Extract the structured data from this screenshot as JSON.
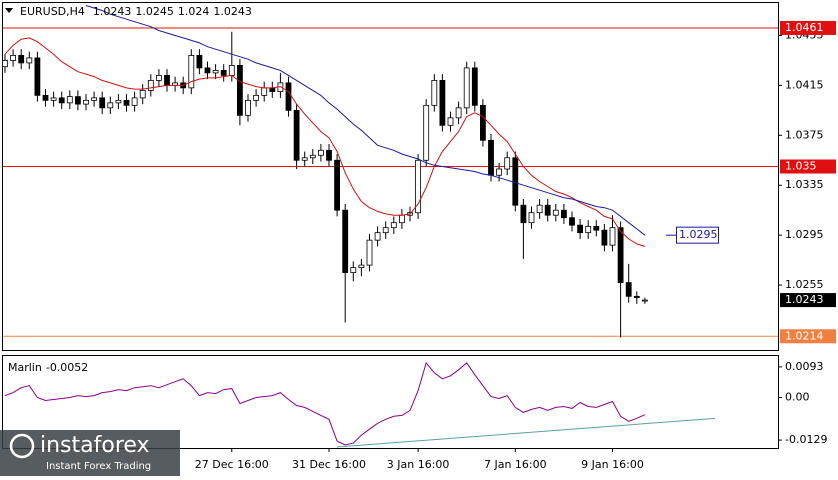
{
  "chart_data": [
    {
      "type": "candlestick",
      "categories": [
        null,
        null,
        null,
        null,
        null,
        null,
        null,
        null,
        null,
        null,
        null,
        null,
        null,
        null,
        null,
        null,
        null,
        null,
        null,
        null,
        null,
        null,
        null,
        null,
        null,
        null,
        null,
        null,
        "27 Dec 16:00",
        null,
        null,
        null,
        null,
        null,
        null,
        null,
        null,
        null,
        null,
        null,
        "31 Dec 16:00",
        null,
        null,
        null,
        null,
        null,
        null,
        null,
        null,
        null,
        null,
        "3 Jan 16:00",
        null,
        null,
        null,
        null,
        null,
        null,
        null,
        null,
        null,
        null,
        null,
        "7 Jan 16:00",
        null,
        null,
        null,
        null,
        null,
        null,
        null,
        null,
        null,
        null,
        null,
        "9 Jan 16:00",
        null,
        null,
        null,
        null
      ],
      "series": [
        {
          "name": "EURUSD,H4",
          "open": [
            1.043,
            1.0435,
            1.0439,
            1.0433,
            1.0437,
            1.0407,
            1.0403,
            1.0405,
            1.0401,
            1.0406,
            1.04,
            1.0403,
            1.0405,
            1.0397,
            1.0401,
            1.0403,
            1.0399,
            1.0405,
            1.0411,
            1.0419,
            1.0423,
            1.0415,
            1.0417,
            1.0413,
            1.0439,
            1.0429,
            1.0425,
            1.0427,
            1.0423,
            1.0431,
            1.0391,
            1.0403,
            1.0407,
            1.0413,
            1.041,
            1.0417,
            1.0395,
            1.0355,
            1.0357,
            1.0359,
            1.0363,
            1.0355,
            1.0315,
            1.0265,
            1.0269,
            1.0271,
            1.0291,
            1.0297,
            1.0301,
            1.0305,
            1.0311,
            1.0313,
            1.0355,
            1.0399,
            1.0419,
            1.0383,
            1.0389,
            1.0397,
            1.0429,
            1.0399,
            1.0371,
            1.0343,
            1.0348,
            1.0357,
            1.0319,
            1.0305,
            1.0313,
            1.0319,
            1.0311,
            1.0315,
            1.0309,
            1.0303,
            1.0297,
            1.0302,
            1.0299,
            1.0287,
            1.0301,
            1.0257,
            1.0246,
            1.0243
          ],
          "high": [
            1.044,
            1.0444,
            1.0444,
            1.0442,
            1.0442,
            1.0412,
            1.041,
            1.041,
            1.0411,
            1.0411,
            1.0408,
            1.041,
            1.041,
            1.0406,
            1.0408,
            1.0408,
            1.041,
            1.0416,
            1.0424,
            1.0428,
            1.0428,
            1.0422,
            1.0422,
            1.0444,
            1.0444,
            1.0434,
            1.0432,
            1.0432,
            1.0458,
            1.0436,
            1.0408,
            1.0412,
            1.0418,
            1.0418,
            1.0425,
            1.0422,
            1.04,
            1.0362,
            1.0364,
            1.0368,
            1.0368,
            1.036,
            1.032,
            1.0274,
            1.0276,
            1.0296,
            1.0302,
            1.0306,
            1.031,
            1.0316,
            1.0318,
            1.036,
            1.0404,
            1.0424,
            1.0424,
            1.0394,
            1.0402,
            1.0434,
            1.0434,
            1.0404,
            1.0376,
            1.0353,
            1.0362,
            1.0362,
            1.0324,
            1.0318,
            1.0324,
            1.0324,
            1.032,
            1.032,
            1.0314,
            1.0308,
            1.0307,
            1.0307,
            1.0304,
            1.0311,
            1.0306,
            1.0272,
            1.025,
            1.0245
          ],
          "low": [
            1.0425,
            1.043,
            1.0428,
            1.0428,
            1.0402,
            1.0398,
            1.0398,
            1.0396,
            1.0396,
            1.0395,
            1.0395,
            1.0398,
            1.0392,
            1.0392,
            1.0396,
            1.0394,
            1.0394,
            1.04,
            1.0406,
            1.0414,
            1.041,
            1.041,
            1.0408,
            1.0408,
            1.0424,
            1.042,
            1.042,
            1.0418,
            1.0418,
            1.0383,
            1.0386,
            1.0398,
            1.0402,
            1.0405,
            1.0405,
            1.039,
            1.0348,
            1.035,
            1.0352,
            1.0354,
            1.035,
            1.031,
            1.0225,
            1.0258,
            1.0262,
            1.0266,
            1.0286,
            1.0292,
            1.0296,
            1.03,
            1.0306,
            1.0308,
            1.035,
            1.0394,
            1.0378,
            1.0378,
            1.0384,
            1.0392,
            1.0394,
            1.0366,
            1.0338,
            1.0338,
            1.0343,
            1.0314,
            1.0276,
            1.03,
            1.0308,
            1.0306,
            1.0306,
            1.0304,
            1.0298,
            1.0292,
            1.0292,
            1.0294,
            1.0282,
            1.0282,
            1.0213,
            1.0241,
            1.024,
            1.024
          ],
          "close": [
            1.0435,
            1.0439,
            1.0433,
            1.0437,
            1.0407,
            1.0403,
            1.0405,
            1.0401,
            1.0406,
            1.04,
            1.0403,
            1.0405,
            1.0397,
            1.0401,
            1.0403,
            1.0399,
            1.0405,
            1.0411,
            1.0419,
            1.0423,
            1.0415,
            1.0417,
            1.0413,
            1.0439,
            1.0429,
            1.0425,
            1.0427,
            1.0423,
            1.0431,
            1.0391,
            1.0403,
            1.0407,
            1.0413,
            1.041,
            1.0417,
            1.0395,
            1.0355,
            1.0357,
            1.0359,
            1.0363,
            1.0355,
            1.0315,
            1.0265,
            1.0269,
            1.0271,
            1.0291,
            1.0297,
            1.0301,
            1.0305,
            1.0311,
            1.0313,
            1.0355,
            1.0399,
            1.0419,
            1.0383,
            1.0389,
            1.0397,
            1.0429,
            1.0399,
            1.0371,
            1.0343,
            1.0348,
            1.0357,
            1.0319,
            1.0305,
            1.0313,
            1.0319,
            1.0311,
            1.0315,
            1.0309,
            1.0303,
            1.0297,
            1.0302,
            1.0299,
            1.0287,
            1.0301,
            1.0257,
            1.0246,
            1.0245,
            1.0243
          ]
        }
      ],
      "lines": [
        {
          "color": "#d01010",
          "values": [
            1.044,
            1.0447,
            1.0452,
            1.0453,
            1.045,
            1.0445,
            1.044,
            1.0434,
            1.043,
            1.0426,
            1.0424,
            1.0422,
            1.0419,
            1.0417,
            1.0415,
            1.0413,
            1.0412,
            1.0412,
            1.0413,
            1.0414,
            1.0415,
            1.0415,
            1.0415,
            1.0418,
            1.042,
            1.0421,
            1.0421,
            1.0422,
            1.0423,
            1.0418,
            1.0416,
            1.0414,
            1.0413,
            1.0413,
            1.0414,
            1.041,
            1.04,
            1.0392,
            1.0385,
            1.0378,
            1.0373,
            1.0362,
            1.0345,
            1.0332,
            1.0322,
            1.0317,
            1.0314,
            1.0312,
            1.0311,
            1.0311,
            1.0312,
            1.032,
            1.0333,
            1.035,
            1.0362,
            1.037,
            1.0378,
            1.039,
            1.0393,
            1.039,
            1.0383,
            1.0376,
            1.037,
            1.036,
            1.035,
            1.0343,
            1.0338,
            1.0334,
            1.033,
            1.0328,
            1.0325,
            1.0321,
            1.0318,
            1.0315,
            1.031,
            1.0308,
            1.0298,
            1.0292,
            1.0288,
            1.0286
          ]
        },
        {
          "color": "#1a1aa0",
          "values": [
            null,
            null,
            null,
            null,
            null,
            null,
            null,
            null,
            null,
            null,
            1.0479,
            1.0477,
            1.0475,
            1.0472,
            1.047,
            1.0468,
            1.0466,
            1.0464,
            1.0462,
            1.0459,
            1.0457,
            1.0455,
            1.0453,
            1.0451,
            1.0449,
            1.0446,
            1.0444,
            1.0442,
            1.044,
            1.0438,
            1.0436,
            1.0433,
            1.0431,
            1.0429,
            1.0427,
            1.0423,
            1.0419,
            1.0415,
            1.0411,
            1.0407,
            1.0401,
            1.0396,
            1.039,
            1.0384,
            1.0379,
            1.0373,
            1.0367,
            1.0365,
            1.0363,
            1.036,
            1.0358,
            1.0356,
            1.0353,
            1.0351,
            1.035,
            1.0349,
            1.0348,
            1.0347,
            1.0346,
            1.0344,
            1.0343,
            1.0341,
            1.0339,
            1.0337,
            1.0335,
            1.0333,
            1.0331,
            1.0329,
            1.0327,
            1.0325,
            1.0324,
            1.0322,
            1.032,
            1.0318,
            1.0317,
            1.0315,
            1.031,
            1.0305,
            1.03,
            1.0295
          ]
        }
      ],
      "levels": [
        {
          "value": 1.0461,
          "color": "#e01010"
        },
        {
          "value": 1.035,
          "color": "#e01010"
        },
        {
          "value": 1.0214,
          "color": "#f08040"
        }
      ],
      "ylim": [
        1.0203,
        1.0481
      ],
      "yticks": [
        1.0455,
        1.0415,
        1.0375,
        1.0335,
        1.0295,
        1.0255
      ]
    },
    {
      "type": "line",
      "title": "Marlin",
      "color": "#8b008b",
      "values": [
        0.0006,
        0.0015,
        0.003,
        0.0036,
        0.0,
        -0.0009,
        -0.0006,
        -0.0003,
        0.0,
        0.0006,
        0.0003,
        0.0006,
        0.0015,
        0.0018,
        0.0024,
        0.0021,
        0.003,
        0.0033,
        0.0036,
        0.003,
        0.0039,
        0.0048,
        0.0057,
        0.0036,
        0.0006,
        0.0015,
        0.0012,
        0.0024,
        0.0027,
        -0.0018,
        -0.0009,
        0.0,
        0.0003,
        0.0006,
        0.0015,
        -0.0006,
        -0.0024,
        -0.003,
        -0.0042,
        -0.0054,
        -0.0066,
        -0.0132,
        -0.0144,
        -0.0138,
        -0.0114,
        -0.0096,
        -0.0078,
        -0.0066,
        -0.0057,
        -0.0054,
        -0.0039,
        0.0021,
        0.0105,
        0.0075,
        0.0057,
        0.0066,
        0.0084,
        0.0105,
        0.0069,
        0.0036,
        0.0003,
        -0.0003,
        0.0006,
        -0.003,
        -0.0045,
        -0.0036,
        -0.003,
        -0.0039,
        -0.003,
        -0.0027,
        -0.0033,
        -0.0015,
        -0.0027,
        -0.003,
        -0.0021,
        -0.0012,
        -0.0057,
        -0.0072,
        -0.0063,
        -0.0052
      ],
      "trendline": {
        "color": "#5f9ea0",
        "values": [
          -0.015,
          -0.0063
        ]
      },
      "ylim": [
        -0.0153,
        0.0126
      ],
      "yticks": [
        0.0093,
        {
          "value": 0,
          "label": "0.00"
        },
        -0.0129
      ]
    }
  ],
  "watermark": {
    "brand": "instaforex",
    "tagline": "Instant Forex Trading"
  }
}
